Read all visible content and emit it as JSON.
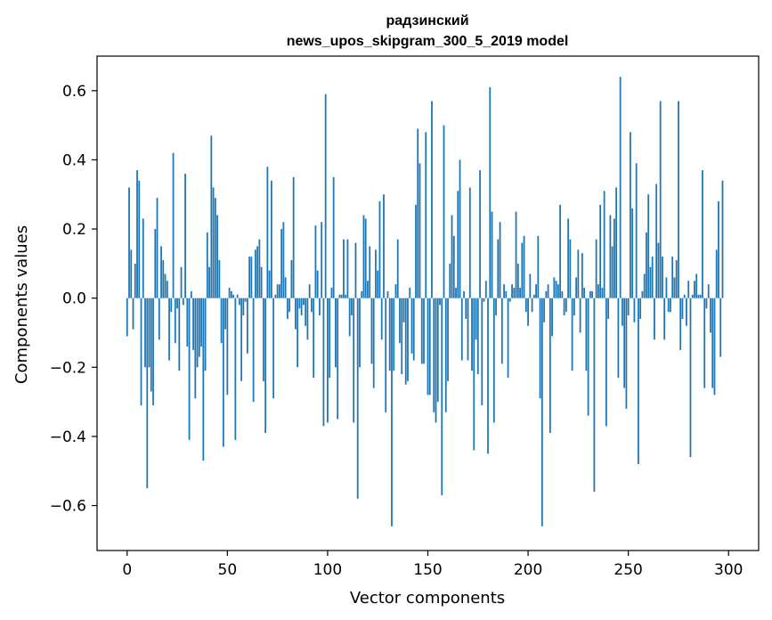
{
  "chart_data": {
    "type": "bar",
    "title": "радзинский",
    "subtitle": "news_upos_skipgram_300_5_2019 model",
    "xlabel": "Vector components",
    "ylabel": "Components values",
    "xlim": [
      -15,
      315
    ],
    "ylim": [
      -0.73,
      0.7
    ],
    "grid": false,
    "bar_color": "#1f77b4",
    "x_ticks": [
      {
        "value": 0,
        "label": "0"
      },
      {
        "value": 50,
        "label": "50"
      },
      {
        "value": 100,
        "label": "100"
      },
      {
        "value": 150,
        "label": "150"
      },
      {
        "value": 200,
        "label": "200"
      },
      {
        "value": 250,
        "label": "250"
      },
      {
        "value": 300,
        "label": "300"
      }
    ],
    "y_ticks": [
      {
        "value": 0.6,
        "label": "0.6"
      },
      {
        "value": 0.4,
        "label": "0.4"
      },
      {
        "value": 0.2,
        "label": "0.2"
      },
      {
        "value": 0.0,
        "label": "0.0"
      },
      {
        "value": -0.2,
        "label": "−0.2"
      },
      {
        "value": -0.4,
        "label": "−0.4"
      },
      {
        "value": -0.6,
        "label": "−0.6"
      }
    ],
    "values": [
      -0.11,
      0.32,
      0.14,
      -0.09,
      0.1,
      0.37,
      0.34,
      -0.31,
      0.23,
      -0.2,
      -0.55,
      -0.2,
      -0.27,
      -0.31,
      0.2,
      0.29,
      -0.12,
      0.15,
      0.11,
      0.07,
      0.05,
      -0.18,
      -0.04,
      0.42,
      -0.13,
      -0.03,
      -0.21,
      0.09,
      -0.02,
      0.36,
      -0.14,
      -0.41,
      0.02,
      -0.15,
      -0.29,
      -0.2,
      -0.17,
      -0.14,
      -0.47,
      -0.21,
      0.19,
      0.09,
      0.47,
      0.32,
      0.29,
      0.24,
      0.11,
      -0.13,
      -0.43,
      -0.09,
      -0.28,
      0.03,
      0.02,
      0.01,
      -0.41,
      0.01,
      -0.02,
      -0.24,
      -0.05,
      -0.01,
      -0.16,
      0.12,
      0.12,
      -0.3,
      0.14,
      0.15,
      0.17,
      0.09,
      -0.24,
      -0.39,
      0.38,
      0.08,
      0.34,
      -0.29,
      0.01,
      0.04,
      0.04,
      0.2,
      0.22,
      0.06,
      -0.06,
      -0.04,
      0.11,
      0.35,
      -0.09,
      -0.2,
      -0.03,
      -0.05,
      -0.02,
      -0.08,
      -0.12,
      0.04,
      -0.04,
      -0.23,
      0.21,
      0.08,
      -0.05,
      0.22,
      -0.37,
      0.59,
      -0.36,
      -0.23,
      0.03,
      0.35,
      -0.2,
      -0.35,
      0.01,
      0.01,
      0.17,
      0.01,
      0.17,
      -0.11,
      -0.05,
      -0.36,
      0.16,
      -0.58,
      -0.2,
      0.02,
      0.24,
      0.23,
      0.05,
      0.15,
      -0.19,
      -0.26,
      0.14,
      0.08,
      0.28,
      -0.12,
      0.3,
      -0.33,
      0.02,
      -0.21,
      -0.66,
      -0.21,
      0.04,
      0.17,
      -0.13,
      -0.22,
      -0.07,
      -0.25,
      -0.24,
      0.03,
      -0.16,
      -0.18,
      0.27,
      0.49,
      0.39,
      -0.19,
      -0.19,
      0.48,
      -0.28,
      -0.28,
      0.57,
      -0.33,
      -0.36,
      -0.3,
      -0.02,
      -0.57,
      0.5,
      -0.33,
      -0.24,
      0.1,
      0.24,
      0.18,
      0.03,
      0.31,
      0.4,
      -0.18,
      0.02,
      -0.06,
      -0.18,
      0.32,
      -0.21,
      -0.44,
      -0.12,
      -0.22,
      0.37,
      -0.31,
      -0.01,
      0.05,
      -0.45,
      0.61,
      0.25,
      -0.36,
      -0.05,
      0.17,
      0.22,
      -0.19,
      0.04,
      0.02,
      -0.23,
      -0.01,
      0.04,
      0.03,
      0.25,
      0.1,
      0.03,
      0.16,
      0.18,
      -0.04,
      -0.08,
      0.07,
      -0.04,
      0.01,
      0.04,
      0.18,
      -0.29,
      -0.66,
      -0.07,
      0.02,
      0.04,
      -0.39,
      -0.11,
      0.06,
      0.05,
      0.04,
      0.27,
      0.02,
      -0.05,
      -0.04,
      0.23,
      0.17,
      -0.21,
      -0.05,
      0.06,
      0.14,
      -0.1,
      0.13,
      0.03,
      -0.21,
      -0.34,
      0.02,
      0.02,
      -0.56,
      0.17,
      0.04,
      0.27,
      0.03,
      0.31,
      -0.37,
      -0.06,
      0.24,
      0.15,
      0.23,
      0.32,
      -0.23,
      0.64,
      -0.08,
      -0.26,
      -0.32,
      -0.05,
      0.48,
      0.26,
      -0.07,
      0.39,
      -0.48,
      -0.06,
      0.02,
      0.07,
      0.19,
      0.3,
      0.09,
      0.12,
      -0.12,
      0.33,
      0.16,
      0.57,
      0.12,
      -0.12,
      0.06,
      -0.04,
      -0.04,
      0.12,
      0.06,
      0.11,
      0.57,
      -0.15,
      -0.06,
      0.01,
      -0.08,
      0.05,
      -0.46,
      0.01,
      0.05,
      0.07,
      0.01,
      0.01,
      0.37,
      -0.26,
      -0.03,
      0.04,
      -0.1,
      -0.26,
      -0.28,
      0.14,
      0.28,
      -0.17,
      0.34
    ]
  }
}
